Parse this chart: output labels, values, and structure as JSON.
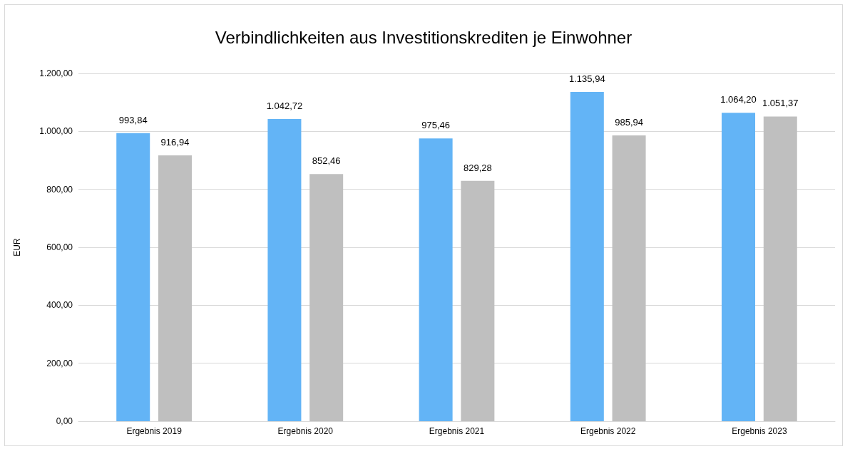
{
  "chart_data": {
    "type": "bar",
    "title": "Verbindlichkeiten aus Investitionskrediten je Einwohner",
    "ylabel": "EUR",
    "categories": [
      "Ergebnis 2019",
      "Ergebnis 2020",
      "Ergebnis 2021",
      "Ergebnis 2022",
      "Ergebnis 2023"
    ],
    "series": [
      {
        "color": "#63b4f6",
        "values": [
          993.84,
          1042.72,
          975.46,
          1135.94,
          1064.2
        ],
        "value_labels": [
          "993,84",
          "1.042,72",
          "975,46",
          "1.135,94",
          "1.064,20"
        ]
      },
      {
        "color": "#bfbfbf",
        "values": [
          916.94,
          852.46,
          829.28,
          985.94,
          1051.37
        ],
        "value_labels": [
          "916,94",
          "852,46",
          "829,28",
          "985,94",
          "1.051,37"
        ]
      }
    ],
    "ylim": [
      0,
      1200
    ],
    "yticks": [
      {
        "value": 0,
        "label": "0,00"
      },
      {
        "value": 200,
        "label": "200,00"
      },
      {
        "value": 400,
        "label": "400,00"
      },
      {
        "value": 600,
        "label": "600,00"
      },
      {
        "value": 800,
        "label": "800,00"
      },
      {
        "value": 1000,
        "label": "1.000,00"
      },
      {
        "value": 1200,
        "label": "1.200,00"
      }
    ],
    "grid": "y"
  }
}
